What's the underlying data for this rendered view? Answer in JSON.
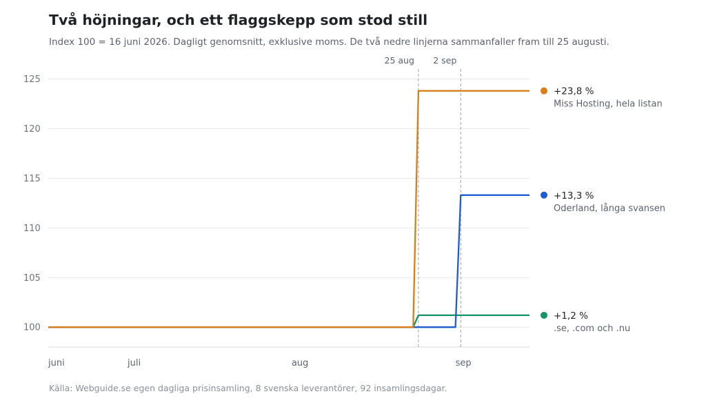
{
  "title": "Två höjningar, och ett flaggskepp som stod still",
  "subtitle": "Index 100 = 16 juni 2026. Dagligt genomsnitt, exklusive moms. De två nedre linjerna sammanfaller fram till 25 augusti.",
  "source": "Källa: Webguide.se egen dagliga prisinsamling, 8 svenska leverantörer, 92 insamlingsdagar.",
  "chart_data": {
    "type": "line",
    "x_axis": {
      "type": "date",
      "range": [
        "2026-06-16",
        "2026-09-15"
      ],
      "ticks": [
        {
          "date": "2026-06-16",
          "label": "juni"
        },
        {
          "date": "2026-07-01",
          "label": "juli"
        },
        {
          "date": "2026-08-01",
          "label": "aug"
        },
        {
          "date": "2026-09-01",
          "label": "sep"
        }
      ]
    },
    "y_axis": {
      "range": [
        98,
        126
      ],
      "ticks": [
        100,
        105,
        110,
        115,
        120,
        125
      ]
    },
    "grid": true,
    "markers": [
      {
        "date": "2026-08-25",
        "label": "25 aug"
      },
      {
        "date": "2026-09-02",
        "label": "2 sep"
      }
    ],
    "series": [
      {
        "name": "Miss Hosting, hela listan",
        "end_label": "+23,8 %",
        "color": "#d97d14",
        "points": [
          [
            "2026-06-16",
            100
          ],
          [
            "2026-08-24",
            100
          ],
          [
            "2026-08-25",
            123.8
          ],
          [
            "2026-09-15",
            123.8
          ]
        ]
      },
      {
        "name": "Oderland, långa svansen",
        "end_label": "+13,3 %",
        "color": "#1f5bd0",
        "points": [
          [
            "2026-06-16",
            100
          ],
          [
            "2026-09-01",
            100
          ],
          [
            "2026-09-02",
            113.3
          ],
          [
            "2026-09-15",
            113.3
          ]
        ]
      },
      {
        "name": ".se, .com och .nu",
        "end_label": "+1,2 %",
        "color": "#119466",
        "points": [
          [
            "2026-06-16",
            100
          ],
          [
            "2026-08-24",
            100
          ],
          [
            "2026-08-25",
            101.2
          ],
          [
            "2026-09-15",
            101.2
          ]
        ]
      }
    ]
  }
}
